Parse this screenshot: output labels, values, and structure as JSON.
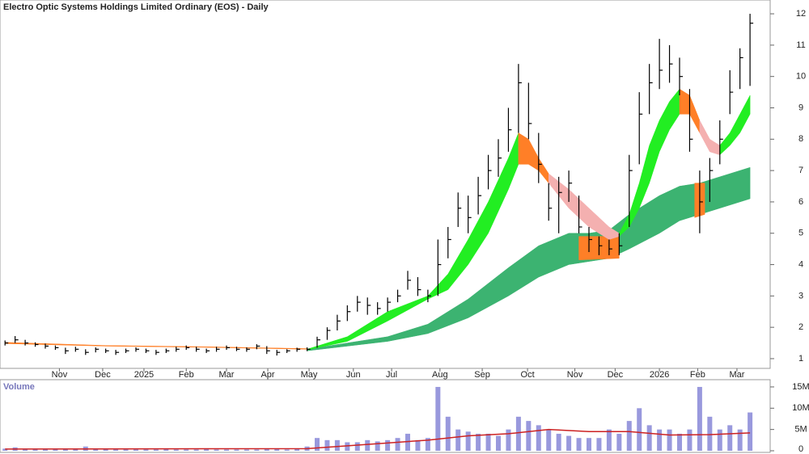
{
  "chart_data": [
    {
      "type": "ohlc",
      "title": "Electro Optic Systems Holdings Limited Ordinary (EOS) - Daily",
      "color": "#000000",
      "x": [
        0,
        1,
        2,
        3,
        4,
        5,
        6,
        7,
        8,
        9,
        10,
        11,
        12,
        13,
        14,
        15,
        16,
        17,
        18,
        19,
        20,
        21,
        22,
        23,
        24,
        25,
        26,
        27,
        28,
        29,
        30,
        31,
        32,
        33,
        34,
        35,
        36,
        37,
        38,
        39,
        40,
        41,
        42,
        43,
        44,
        45,
        46,
        47,
        48,
        49,
        50,
        51,
        52,
        53,
        54,
        55,
        56,
        57,
        58,
        59,
        60,
        61,
        62,
        63,
        64,
        65,
        66,
        67,
        68,
        69,
        70,
        71,
        72,
        73,
        74
      ],
      "high": [
        1.58,
        1.72,
        1.6,
        1.52,
        1.48,
        1.42,
        1.35,
        1.38,
        1.3,
        1.36,
        1.32,
        1.28,
        1.32,
        1.36,
        1.32,
        1.28,
        1.32,
        1.38,
        1.42,
        1.38,
        1.32,
        1.38,
        1.42,
        1.38,
        1.36,
        1.46,
        1.4,
        1.28,
        1.3,
        1.35,
        1.36,
        1.7,
        2.0,
        2.4,
        2.7,
        3.0,
        2.95,
        2.8,
        2.95,
        3.2,
        3.8,
        3.6,
        3.2,
        4.8,
        5.2,
        6.3,
        6.2,
        6.8,
        7.5,
        8.0,
        9.0,
        10.4,
        9.8,
        8.2,
        6.6,
        6.8,
        7.0,
        6.2,
        5.2,
        4.9,
        4.8,
        5.0,
        7.5,
        9.5,
        10.4,
        11.2,
        11.0,
        10.6,
        9.6,
        7.0,
        7.4,
        8.6,
        10.2,
        10.9,
        12.0
      ],
      "low": [
        1.42,
        1.5,
        1.42,
        1.38,
        1.32,
        1.28,
        1.15,
        1.22,
        1.12,
        1.2,
        1.18,
        1.12,
        1.18,
        1.22,
        1.18,
        1.12,
        1.18,
        1.22,
        1.28,
        1.22,
        1.18,
        1.22,
        1.28,
        1.24,
        1.22,
        1.3,
        1.15,
        1.1,
        1.18,
        1.22,
        1.24,
        1.35,
        1.6,
        1.9,
        2.2,
        2.5,
        2.4,
        2.4,
        2.5,
        2.8,
        3.2,
        3.0,
        2.8,
        3.0,
        4.2,
        5.2,
        5.0,
        5.6,
        6.4,
        6.8,
        7.6,
        8.2,
        8.0,
        6.6,
        5.4,
        5.0,
        6.0,
        5.0,
        4.4,
        4.3,
        4.3,
        4.3,
        5.2,
        7.2,
        8.8,
        9.6,
        9.8,
        9.4,
        7.6,
        5.0,
        6.0,
        7.2,
        8.8,
        9.6,
        9.7
      ],
      "close": [
        1.5,
        1.6,
        1.5,
        1.45,
        1.4,
        1.35,
        1.25,
        1.3,
        1.2,
        1.3,
        1.25,
        1.2,
        1.25,
        1.3,
        1.25,
        1.2,
        1.25,
        1.3,
        1.35,
        1.3,
        1.25,
        1.3,
        1.35,
        1.3,
        1.3,
        1.4,
        1.25,
        1.2,
        1.25,
        1.3,
        1.3,
        1.6,
        1.9,
        2.2,
        2.5,
        2.8,
        2.7,
        2.6,
        2.8,
        3.0,
        3.5,
        3.2,
        3.0,
        4.0,
        4.8,
        5.8,
        5.5,
        6.2,
        7.0,
        7.4,
        8.3,
        9.8,
        8.5,
        7.2,
        5.8,
        6.3,
        6.6,
        5.2,
        4.8,
        4.6,
        4.5,
        4.6,
        7.0,
        8.8,
        9.8,
        10.2,
        10.4,
        10.0,
        8.0,
        6.0,
        7.0,
        8.0,
        9.5,
        10.6,
        11.7
      ],
      "bands": [
        {
          "color": "#3cb371",
          "x": [
            30,
            34,
            38,
            42,
            46,
            50,
            53,
            56,
            58,
            60,
            62,
            65,
            67,
            69,
            71,
            74
          ],
          "upper": [
            1.3,
            1.5,
            1.7,
            2.1,
            2.9,
            3.9,
            4.6,
            5.0,
            5.0,
            5.1,
            5.6,
            6.2,
            6.5,
            6.6,
            6.8,
            7.1
          ],
          "lower": [
            1.25,
            1.4,
            1.55,
            1.8,
            2.3,
            3.0,
            3.6,
            4.0,
            4.1,
            4.2,
            4.5,
            5.0,
            5.4,
            5.6,
            5.8,
            6.1
          ]
        },
        {
          "color": "#ff7f27",
          "x": [
            57,
            61
          ],
          "upper": [
            4.9,
            4.9
          ],
          "lower": [
            4.15,
            4.2
          ]
        },
        {
          "color": "#ff7f27",
          "x": [
            68.5,
            69.5
          ],
          "upper": [
            6.6,
            6.6
          ],
          "lower": [
            5.5,
            5.6
          ]
        },
        {
          "color": "#ff7f27",
          "x": [
            0,
            10,
            20,
            30
          ],
          "upper": [
            1.52,
            1.42,
            1.38,
            1.32
          ],
          "lower": [
            1.48,
            1.4,
            1.36,
            1.3
          ]
        },
        {
          "color": "#22ee22",
          "x": [
            30,
            34,
            38,
            42,
            44,
            46,
            48,
            50,
            51
          ],
          "upper": [
            1.3,
            1.7,
            2.5,
            3.0,
            3.7,
            4.8,
            6.0,
            7.4,
            8.2
          ],
          "lower": [
            1.28,
            1.55,
            2.2,
            2.9,
            3.2,
            4.0,
            5.0,
            6.4,
            7.2
          ]
        },
        {
          "color": "#ff7f27",
          "x": [
            51,
            52,
            53,
            54
          ],
          "upper": [
            8.2,
            8.0,
            7.4,
            6.9
          ],
          "lower": [
            7.2,
            7.2,
            7.0,
            6.6
          ]
        },
        {
          "color": "#f4b0b0",
          "x": [
            54,
            56,
            58,
            60,
            61
          ],
          "upper": [
            6.9,
            6.4,
            5.8,
            5.2,
            5.0
          ],
          "lower": [
            6.6,
            5.8,
            5.2,
            4.8,
            4.9
          ]
        },
        {
          "color": "#22ee22",
          "x": [
            61,
            62,
            63,
            64,
            65,
            66,
            67
          ],
          "upper": [
            5.0,
            5.6,
            6.6,
            7.8,
            8.6,
            9.2,
            9.6
          ],
          "lower": [
            4.9,
            5.2,
            5.8,
            6.6,
            7.6,
            8.3,
            8.8
          ]
        },
        {
          "color": "#ff7f27",
          "x": [
            67,
            68,
            69
          ],
          "upper": [
            9.6,
            9.4,
            8.6
          ],
          "lower": [
            8.8,
            8.8,
            8.2
          ]
        },
        {
          "color": "#f4b0b0",
          "x": [
            69,
            70,
            71
          ],
          "upper": [
            8.6,
            8.0,
            7.8
          ],
          "lower": [
            8.2,
            7.6,
            7.5
          ]
        },
        {
          "color": "#22ee22",
          "x": [
            71,
            72,
            73,
            74
          ],
          "upper": [
            7.8,
            8.2,
            8.8,
            9.4
          ],
          "lower": [
            7.5,
            7.8,
            8.2,
            8.8
          ]
        }
      ],
      "xlim": [
        -0.5,
        76
      ],
      "ylim": [
        0.69,
        12.44
      ],
      "yticks": [
        1,
        2,
        3,
        4,
        5,
        6,
        7,
        8,
        9,
        10,
        11,
        12
      ],
      "xticks": [
        {
          "value": 5.4,
          "label": "Nov"
        },
        {
          "value": 9.7,
          "label": "Dec"
        },
        {
          "value": 13.8,
          "label": "2025"
        },
        {
          "value": 18,
          "label": "Feb"
        },
        {
          "value": 22,
          "label": "Mar"
        },
        {
          "value": 26.1,
          "label": "Apr"
        },
        {
          "value": 30.2,
          "label": "May"
        },
        {
          "value": 34.6,
          "label": "Jun"
        },
        {
          "value": 38.4,
          "label": "Jul"
        },
        {
          "value": 43.2,
          "label": "Aug"
        },
        {
          "value": 47.4,
          "label": "Sep"
        },
        {
          "value": 51.9,
          "label": "Oct"
        },
        {
          "value": 56.6,
          "label": "Nov"
        },
        {
          "value": 60.6,
          "label": "Dec"
        },
        {
          "value": 65,
          "label": "2026"
        },
        {
          "value": 68.8,
          "label": "Feb"
        },
        {
          "value": 72.7,
          "label": "Mar"
        }
      ]
    },
    {
      "type": "bar",
      "title": "Volume",
      "color": "#9999dd",
      "x": [
        0,
        1,
        2,
        3,
        4,
        5,
        6,
        7,
        8,
        9,
        10,
        11,
        12,
        13,
        14,
        15,
        16,
        17,
        18,
        19,
        20,
        21,
        22,
        23,
        24,
        25,
        26,
        27,
        28,
        29,
        30,
        31,
        32,
        33,
        34,
        35,
        36,
        37,
        38,
        39,
        40,
        41,
        42,
        43,
        44,
        45,
        46,
        47,
        48,
        49,
        50,
        51,
        52,
        53,
        54,
        55,
        56,
        57,
        58,
        59,
        60,
        61,
        62,
        63,
        64,
        65,
        66,
        67,
        68,
        69,
        70,
        71,
        72,
        73,
        74
      ],
      "values": [
        500000,
        800000,
        400000,
        300000,
        300000,
        300000,
        300000,
        400000,
        1000000,
        400000,
        300000,
        300000,
        300000,
        300000,
        300000,
        300000,
        400000,
        300000,
        300000,
        300000,
        400000,
        300000,
        300000,
        300000,
        300000,
        300000,
        400000,
        500000,
        300000,
        400000,
        1000000,
        3000000,
        2500000,
        2500000,
        2000000,
        2000000,
        2500000,
        2200000,
        2500000,
        3000000,
        4000000,
        2500000,
        3000000,
        15000000,
        8000000,
        5000000,
        4500000,
        4000000,
        4000000,
        3500000,
        5000000,
        8000000,
        7000000,
        6000000,
        5000000,
        4000000,
        3500000,
        3000000,
        3000000,
        3000000,
        5000000,
        4000000,
        7000000,
        10000000,
        6000000,
        5000000,
        5000000,
        4000000,
        5000000,
        15000000,
        8000000,
        5000000,
        6000000,
        5000000,
        9000000
      ],
      "line": {
        "color": "#cc2222",
        "x": [
          0,
          30,
          36,
          42,
          46,
          50,
          54,
          58,
          62,
          66,
          70,
          74
        ],
        "values": [
          400000,
          500000,
          1500000,
          2500000,
          3500000,
          4000000,
          5000000,
          4500000,
          4500000,
          3700000,
          3800000,
          4200000
        ]
      },
      "xlim": [
        -0.5,
        76
      ],
      "ylim": [
        0,
        16700000
      ],
      "yticks": [
        0,
        {
          "value": 5000000,
          "label": "5M"
        },
        {
          "value": 10000000,
          "label": "10M"
        },
        {
          "value": 15000000,
          "label": "15M"
        }
      ]
    }
  ]
}
